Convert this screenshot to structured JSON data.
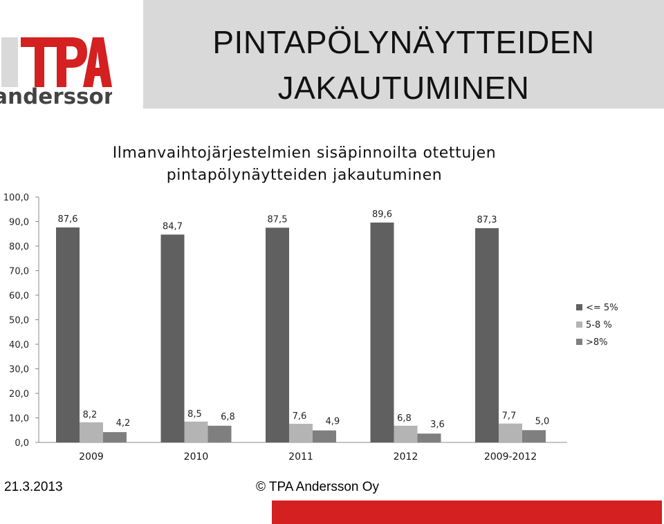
{
  "header": {
    "title_line1": "PINTAPÖLYNÄYTTEIDEN",
    "title_line2": "JAKAUTUMINEN"
  },
  "logo": {
    "text": "TPA andersson"
  },
  "footer": {
    "date": "21.3.2013",
    "copyright": "© TPA Andersson Oy"
  },
  "colors": {
    "series_dark": "#606060",
    "series_light": "#b4b4b4",
    "series_mid": "#7f7f7f",
    "title_band": "#d9d9d9",
    "accent_red": "#d42020"
  },
  "chart_data": {
    "type": "bar",
    "title_line1": "Ilmanvaihtojärjestelmien sisäpinnoilta otettujen",
    "title_line2": "pintapölynäytteiden jakautuminen",
    "categories": [
      "2009",
      "2010",
      "2011",
      "2012",
      "2009-2012"
    ],
    "series": [
      {
        "name": "<= 5%",
        "values": [
          87.6,
          84.7,
          87.5,
          89.6,
          87.3
        ],
        "labels": [
          "87,6",
          "84,7",
          "87,5",
          "89,6",
          "87,3"
        ]
      },
      {
        "name": "5-8 %",
        "values": [
          8.2,
          8.5,
          7.6,
          6.8,
          7.7
        ],
        "labels": [
          "8,2",
          "8,5",
          "7,6",
          "6,8",
          "7,7"
        ]
      },
      {
        "name": ">8%",
        "values": [
          4.2,
          6.8,
          4.9,
          3.6,
          5.0
        ],
        "labels": [
          "4,2",
          "6,8",
          "4,9",
          "3,6",
          "5,0"
        ]
      }
    ],
    "ylim": [
      0,
      100
    ],
    "yticks": [
      "0,0",
      "10,0",
      "20,0",
      "30,0",
      "40,0",
      "50,0",
      "60,0",
      "70,0",
      "80,0",
      "90,0",
      "100,0"
    ],
    "legend_position": "right",
    "grid": false
  }
}
